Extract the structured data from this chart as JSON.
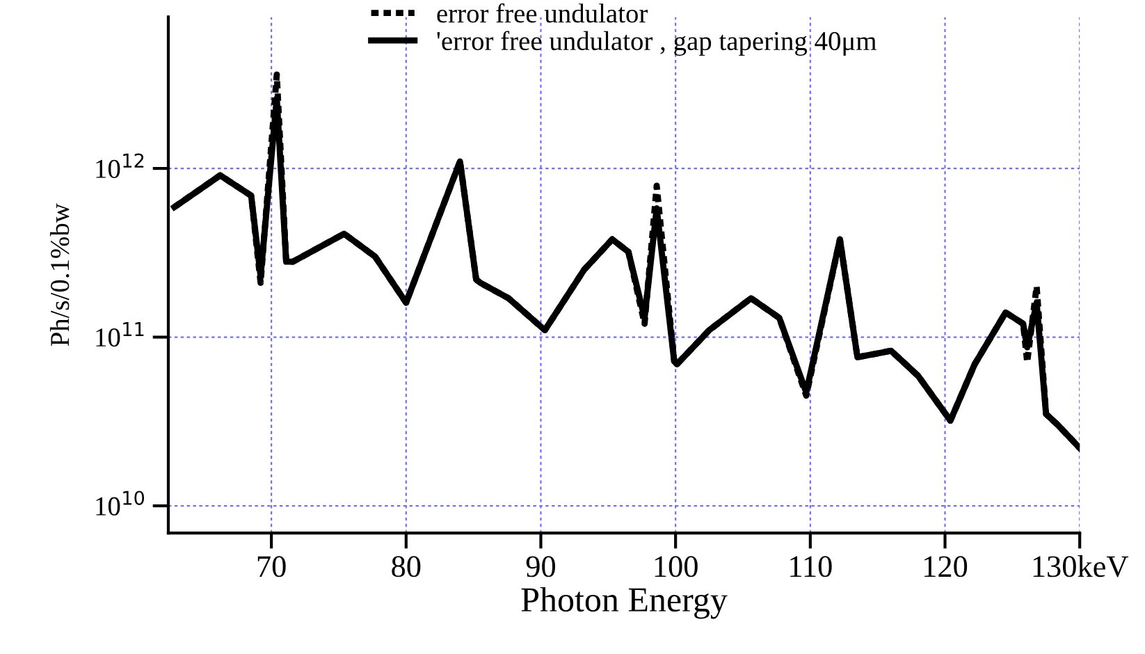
{
  "chart_data": {
    "type": "line",
    "xlabel": "Photon Energy",
    "ylabel": "Ph/s/0.1%bw",
    "log": "y",
    "grid": true,
    "legend": "top",
    "xlim": [
      62.35,
      130
    ],
    "xticks": [
      70,
      80,
      90,
      100,
      110,
      120,
      {
        "value": 130,
        "label": "130keV"
      }
    ],
    "ylim": [
      6900000000.0,
      7900000000000.0
    ],
    "yticks": [
      {
        "value": 10000000000.0,
        "label": "10$^{10}$"
      },
      {
        "value": 100000000000.0,
        "label": "10$^{11}$"
      },
      {
        "value": 1000000000000.0,
        "label": "10$^{12}$"
      }
    ],
    "x": [
      62.8,
      66.2,
      68.5,
      69.2,
      70.4,
      71.1,
      71.6,
      75.4,
      77.7,
      80.0,
      81.9,
      84.0,
      85.2,
      85.5,
      87.6,
      90.3,
      93.2,
      95.3,
      96.5,
      97.7,
      98.6,
      99.9,
      100.1,
      102.5,
      105.6,
      107.7,
      109.7,
      112.2,
      113.5,
      116.0,
      118.0,
      120.4,
      122.2,
      124.5,
      125.8,
      126.1,
      126.8,
      127.5,
      128.4,
      130
    ],
    "series": [
      {
        "name": "error free undulator",
        "color": "#000000",
        "line_style": "dashed",
        "values": [
          590000000000.0,
          910000000000.0,
          690000000000.0,
          210000000000.0,
          3600000000000.0,
          280000000000.0,
          280000000000.0,
          410000000000.0,
          300000000000.0,
          160000000000.0,
          400000000000.0,
          1100000000000.0,
          220000000000.0,
          210000000000.0,
          170000000000.0,
          110000000000.0,
          250000000000.0,
          380000000000.0,
          320000000000.0,
          120000000000.0,
          790000000000.0,
          72000000000.0,
          69000000000.0,
          110000000000.0,
          170000000000.0,
          130000000000.0,
          45000000000.0,
          380000000000.0,
          76000000000.0,
          83000000000.0,
          59000000000.0,
          32000000000.0,
          69000000000.0,
          140000000000.0,
          120000000000.0,
          71000000000.0,
          200000000000.0,
          35000000000.0,
          30000000000.0,
          22000000000.0
        ]
      },
      {
        "name": "'error free undulator , gap tapering 40μm",
        "color": "#000000",
        "line_style": "solid",
        "values": [
          590000000000.0,
          910000000000.0,
          690000000000.0,
          230000000000.0,
          2600000000000.0,
          280000000000.0,
          280000000000.0,
          410000000000.0,
          300000000000.0,
          160000000000.0,
          400000000000.0,
          1100000000000.0,
          220000000000.0,
          210000000000.0,
          170000000000.0,
          110000000000.0,
          250000000000.0,
          380000000000.0,
          320000000000.0,
          130000000000.0,
          580000000000.0,
          72000000000.0,
          69000000000.0,
          110000000000.0,
          170000000000.0,
          130000000000.0,
          47000000000.0,
          380000000000.0,
          76000000000.0,
          83000000000.0,
          59000000000.0,
          32000000000.0,
          69000000000.0,
          140000000000.0,
          120000000000.0,
          87000000000.0,
          160000000000.0,
          35000000000.0,
          30000000000.0,
          22000000000.0
        ]
      }
    ]
  }
}
